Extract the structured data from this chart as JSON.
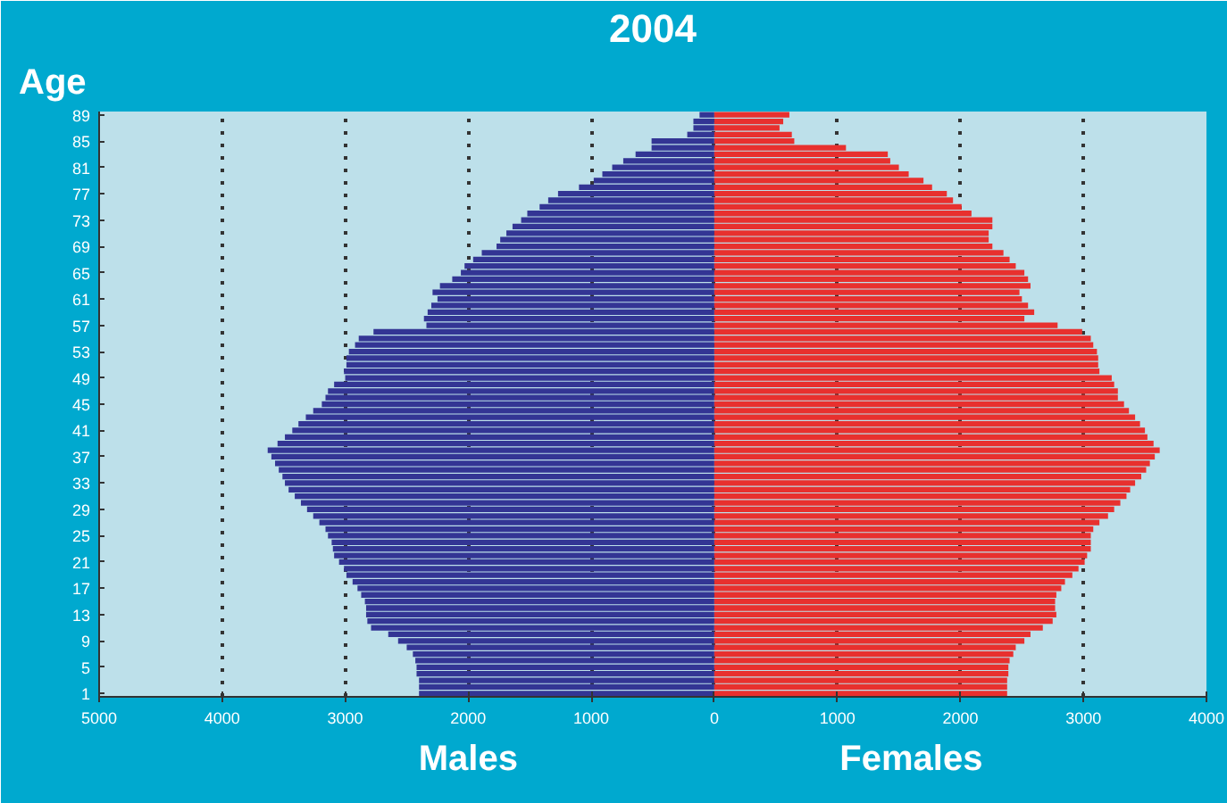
{
  "chart_data": {
    "type": "bar",
    "orientation": "horizontal",
    "stacked": true,
    "title": "2004",
    "ylabel": "Age",
    "grid": "x",
    "xlim": [
      -5000,
      4000
    ],
    "xticks": [
      {
        "value": -5000,
        "label": "5000"
      },
      {
        "value": -4000,
        "label": "4000"
      },
      {
        "value": -3000,
        "label": "3000"
      },
      {
        "value": -2000,
        "label": "2000"
      },
      {
        "value": -1000,
        "label": "1000"
      },
      0,
      1000,
      2000,
      3000,
      4000
    ],
    "categories": [
      "89",
      null,
      null,
      null,
      "85",
      null,
      null,
      null,
      "81",
      null,
      null,
      null,
      "77",
      null,
      null,
      null,
      "73",
      null,
      null,
      null,
      "69",
      null,
      null,
      null,
      "65",
      null,
      null,
      null,
      "61",
      null,
      null,
      null,
      "57",
      null,
      null,
      null,
      "53",
      null,
      null,
      null,
      "49",
      null,
      null,
      null,
      "45",
      null,
      null,
      null,
      "41",
      null,
      null,
      null,
      "37",
      null,
      null,
      null,
      "33",
      null,
      null,
      null,
      "29",
      null,
      null,
      null,
      "25",
      null,
      null,
      null,
      "21",
      null,
      null,
      null,
      "17",
      null,
      null,
      null,
      "13",
      null,
      null,
      null,
      "9",
      null,
      null,
      null,
      "5",
      null,
      null,
      null,
      "1"
    ],
    "series": [
      {
        "name": "Males",
        "color": "#333594",
        "values": [
          -120,
          -170,
          -170,
          -220,
          -510,
          -510,
          -640,
          -740,
          -830,
          -910,
          -980,
          -1100,
          -1270,
          -1350,
          -1420,
          -1520,
          -1570,
          -1640,
          -1690,
          -1740,
          -1770,
          -1890,
          -1960,
          -2030,
          -2060,
          -2130,
          -2230,
          -2290,
          -2250,
          -2300,
          -2330,
          -2360,
          -2340,
          -2770,
          -2890,
          -2920,
          -2970,
          -2990,
          -2990,
          -3010,
          -3000,
          -3090,
          -3140,
          -3160,
          -3190,
          -3260,
          -3320,
          -3380,
          -3430,
          -3490,
          -3550,
          -3630,
          -3600,
          -3570,
          -3540,
          -3510,
          -3490,
          -3460,
          -3410,
          -3360,
          -3310,
          -3260,
          -3210,
          -3160,
          -3140,
          -3110,
          -3100,
          -3090,
          -3050,
          -3010,
          -2990,
          -2940,
          -2900,
          -2870,
          -2840,
          -2830,
          -2830,
          -2820,
          -2790,
          -2650,
          -2570,
          -2500,
          -2450,
          -2430,
          -2420,
          -2420,
          -2400,
          -2400,
          -2400
        ]
      },
      {
        "name": "Females",
        "color": "#e8302e",
        "values": [
          610,
          560,
          530,
          630,
          650,
          1070,
          1410,
          1430,
          1500,
          1580,
          1700,
          1770,
          1890,
          1940,
          2010,
          2090,
          2260,
          2260,
          2230,
          2230,
          2260,
          2350,
          2400,
          2450,
          2520,
          2550,
          2570,
          2480,
          2500,
          2550,
          2600,
          2520,
          2790,
          2990,
          3060,
          3080,
          3110,
          3120,
          3120,
          3130,
          3230,
          3250,
          3280,
          3280,
          3330,
          3370,
          3420,
          3460,
          3500,
          3520,
          3570,
          3620,
          3580,
          3540,
          3510,
          3470,
          3420,
          3380,
          3350,
          3300,
          3250,
          3200,
          3130,
          3080,
          3060,
          3060,
          3060,
          3030,
          3010,
          2960,
          2910,
          2850,
          2820,
          2780,
          2770,
          2770,
          2780,
          2750,
          2670,
          2570,
          2520,
          2450,
          2430,
          2400,
          2390,
          2390,
          2380,
          2380,
          2380
        ]
      }
    ]
  }
}
